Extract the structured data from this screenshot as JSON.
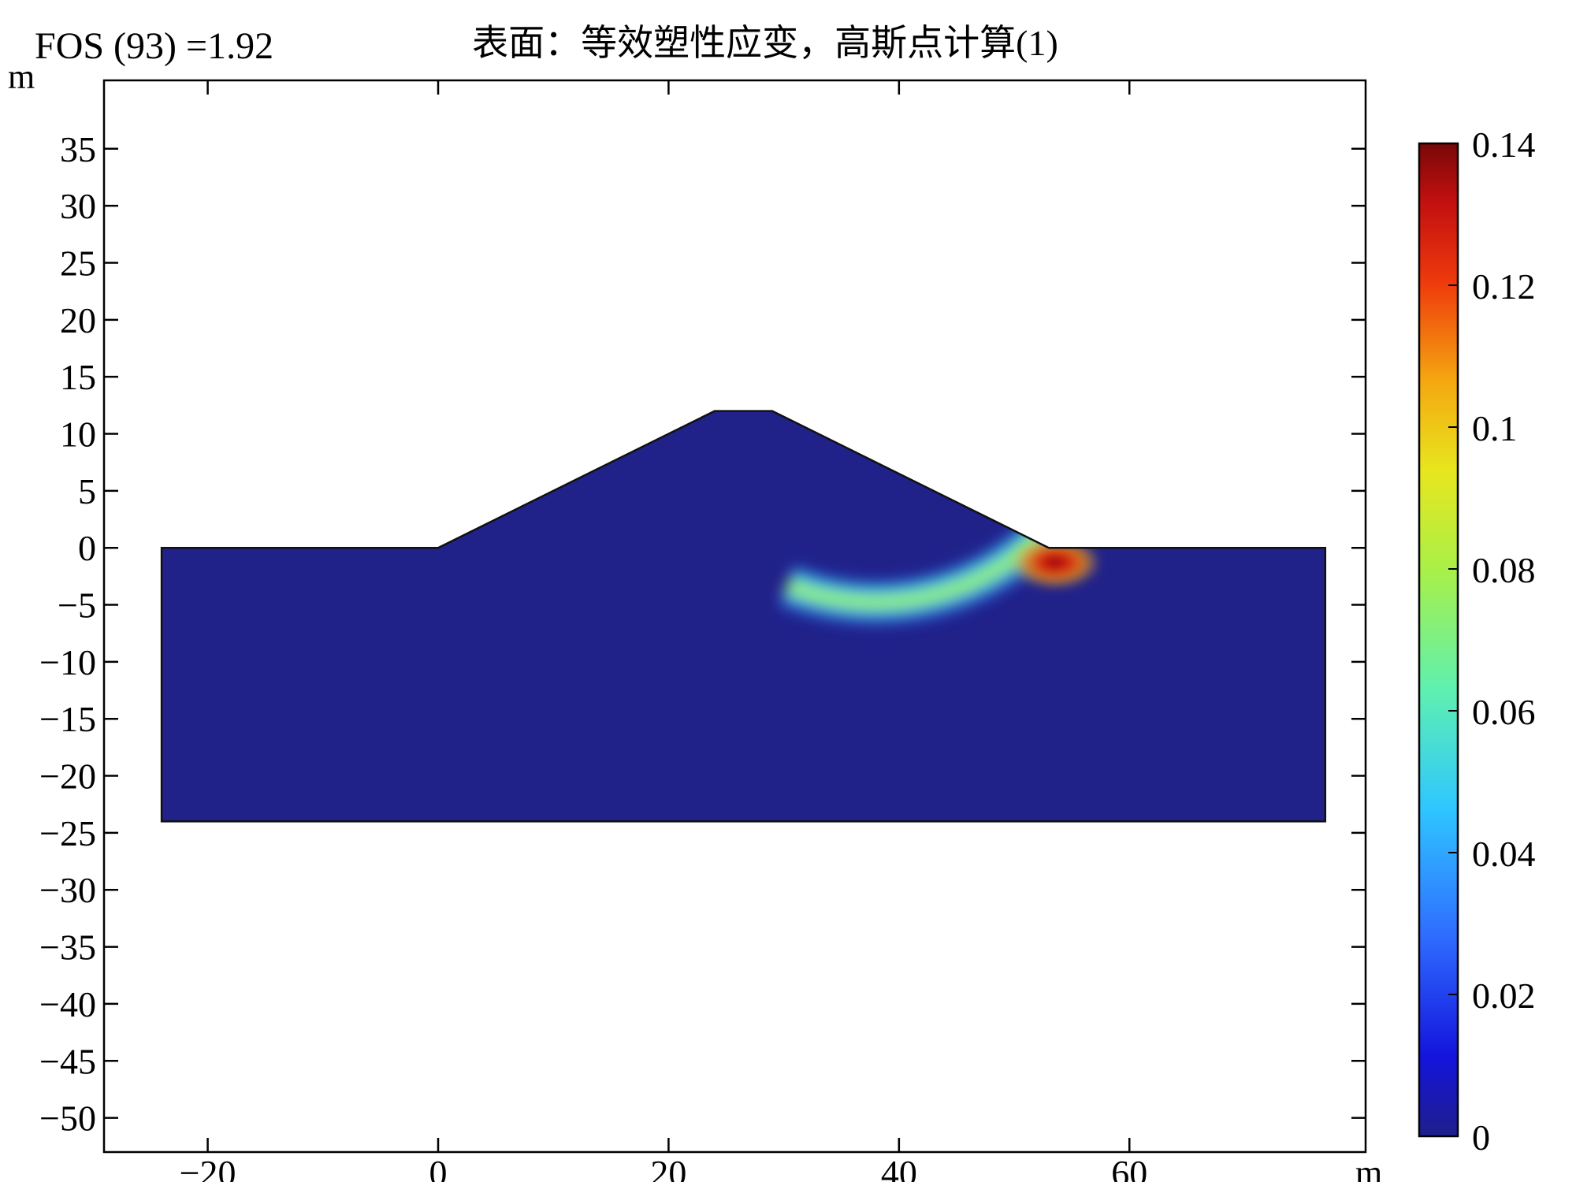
{
  "fos_label": "FOS (93) =1.92",
  "chart_data": {
    "type": "heatmap",
    "title": "表面：等效塑性应变，高斯点计算(1)",
    "x_unit": "m",
    "y_unit": "m",
    "xlim": [
      -29,
      80.5
    ],
    "ylim": [
      -53,
      41
    ],
    "x_ticks": [
      -20,
      0,
      20,
      40,
      60
    ],
    "x_tick_labels": [
      "−20",
      "0",
      "20",
      "40",
      "60"
    ],
    "y_ticks": [
      35,
      30,
      25,
      20,
      15,
      10,
      5,
      0,
      -5,
      -10,
      -15,
      -20,
      -25,
      -30,
      -35,
      -40,
      -45,
      -50
    ],
    "y_tick_labels": [
      "35",
      "30",
      "25",
      "20",
      "15",
      "10",
      "5",
      "0",
      "−5",
      "−10",
      "−15",
      "−20",
      "−25",
      "−30",
      "−35",
      "−40",
      "−45",
      "−50"
    ],
    "domain_outline": [
      [
        -24,
        -24
      ],
      [
        -24,
        0
      ],
      [
        0,
        0
      ],
      [
        24,
        12
      ],
      [
        29,
        12
      ],
      [
        53,
        0
      ],
      [
        77,
        0
      ],
      [
        77,
        -24
      ]
    ],
    "background_value": 0,
    "slip_band": {
      "center": [
        38,
        16
      ],
      "inner_radius": 18,
      "outer_radius": 21,
      "arc_deg": [
        -45,
        -112
      ],
      "value_range": [
        0.04,
        0.09
      ]
    },
    "peak": {
      "x": 53,
      "y": -1,
      "value": 0.14
    },
    "colormap": "jet",
    "colorbar": {
      "min": 0,
      "max": 0.14,
      "ticks": [
        0.14,
        0.12,
        0.1,
        0.08,
        0.06,
        0.04,
        0.02,
        0
      ],
      "tick_labels": [
        "0.14",
        "0.12",
        "0.1",
        "0.08",
        "0.06",
        "0.04",
        "0.02",
        "0"
      ]
    }
  }
}
